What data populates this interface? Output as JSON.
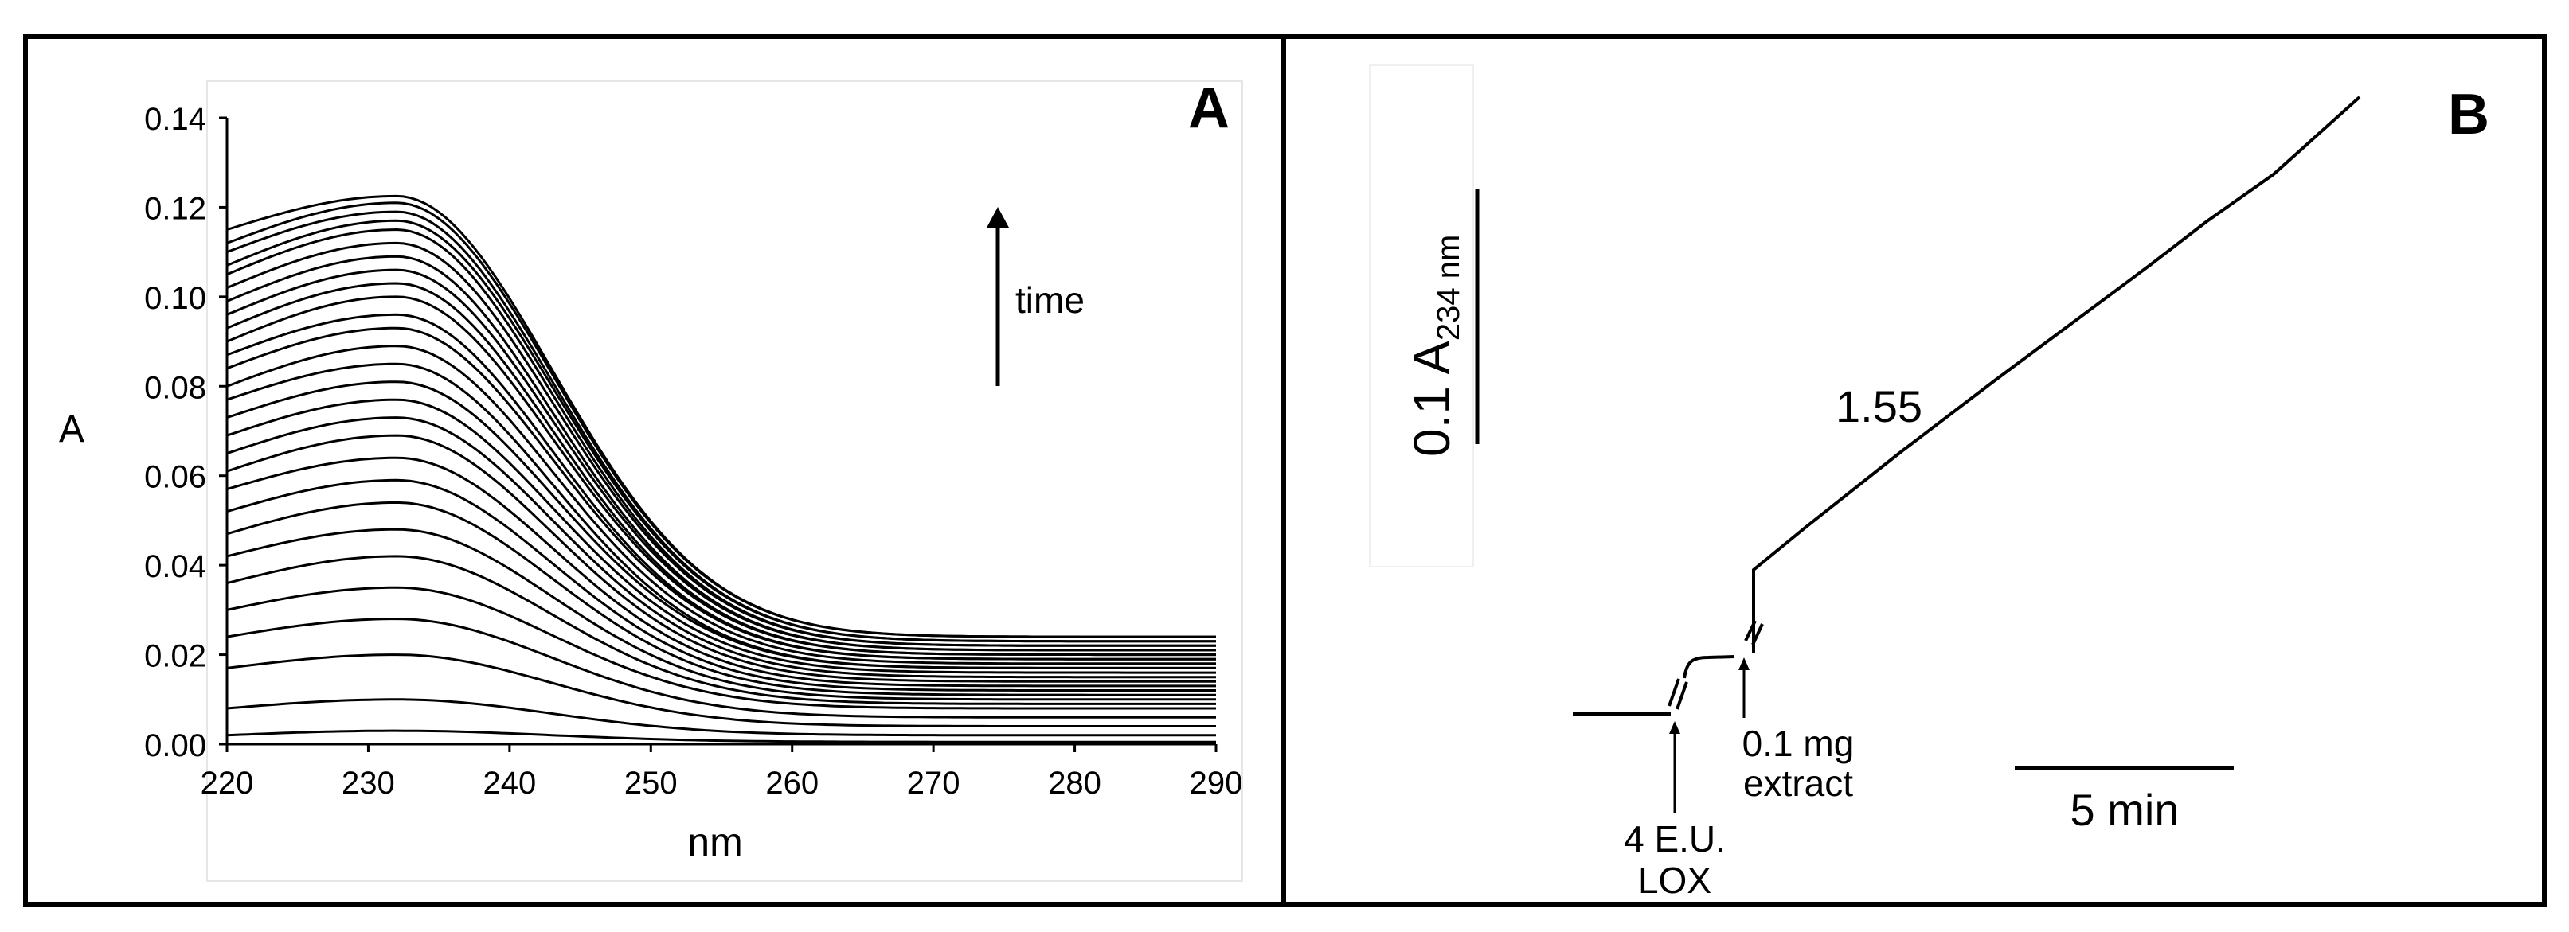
{
  "chart_data": [
    {
      "panel": "A",
      "type": "line",
      "xlabel": "nm",
      "ylabel": "A",
      "xlim": [
        220,
        290
      ],
      "ylim": [
        0,
        0.14
      ],
      "xticks": [
        "220",
        "230",
        "240",
        "250",
        "260",
        "270",
        "280",
        "290"
      ],
      "yticks": [
        "0.00",
        "0.02",
        "0.04",
        "0.06",
        "0.08",
        "0.10",
        "0.12",
        "0.14"
      ],
      "annotation": "time",
      "grid": false,
      "series": [
        {
          "peak": 0.003,
          "start": 0.002,
          "end": 0.0005
        },
        {
          "peak": 0.01,
          "start": 0.008,
          "end": 0.002
        },
        {
          "peak": 0.02,
          "start": 0.017,
          "end": 0.004
        },
        {
          "peak": 0.028,
          "start": 0.024,
          "end": 0.006
        },
        {
          "peak": 0.035,
          "start": 0.03,
          "end": 0.008
        },
        {
          "peak": 0.042,
          "start": 0.036,
          "end": 0.009
        },
        {
          "peak": 0.048,
          "start": 0.042,
          "end": 0.01
        },
        {
          "peak": 0.054,
          "start": 0.047,
          "end": 0.011
        },
        {
          "peak": 0.059,
          "start": 0.052,
          "end": 0.012
        },
        {
          "peak": 0.064,
          "start": 0.057,
          "end": 0.013
        },
        {
          "peak": 0.069,
          "start": 0.061,
          "end": 0.014
        },
        {
          "peak": 0.073,
          "start": 0.065,
          "end": 0.015
        },
        {
          "peak": 0.077,
          "start": 0.069,
          "end": 0.016
        },
        {
          "peak": 0.081,
          "start": 0.073,
          "end": 0.017
        },
        {
          "peak": 0.085,
          "start": 0.077,
          "end": 0.017
        },
        {
          "peak": 0.089,
          "start": 0.08,
          "end": 0.018
        },
        {
          "peak": 0.093,
          "start": 0.084,
          "end": 0.019
        },
        {
          "peak": 0.096,
          "start": 0.087,
          "end": 0.019
        },
        {
          "peak": 0.1,
          "start": 0.09,
          "end": 0.02
        },
        {
          "peak": 0.103,
          "start": 0.093,
          "end": 0.02
        },
        {
          "peak": 0.106,
          "start": 0.096,
          "end": 0.021
        },
        {
          "peak": 0.109,
          "start": 0.099,
          "end": 0.021
        },
        {
          "peak": 0.112,
          "start": 0.102,
          "end": 0.022
        },
        {
          "peak": 0.115,
          "start": 0.105,
          "end": 0.022
        },
        {
          "peak": 0.117,
          "start": 0.107,
          "end": 0.023
        },
        {
          "peak": 0.119,
          "start": 0.11,
          "end": 0.023
        },
        {
          "peak": 0.121,
          "start": 0.112,
          "end": 0.024
        },
        {
          "peak": 0.1225,
          "start": 0.115,
          "end": 0.024
        }
      ]
    },
    {
      "panel": "B",
      "type": "line",
      "scale_bar_y": "0.1 A",
      "scale_bar_y_sub": "234 nm",
      "scale_bar_x": "5 min",
      "rate_label": "1.55",
      "annotations": [
        {
          "id": "lox",
          "line1": "4 E.U.",
          "line2": "LOX"
        },
        {
          "id": "extract",
          "line1": "0.1 mg",
          "line2": "extract"
        }
      ]
    }
  ],
  "panel_labels": {
    "a": "A",
    "b": "B"
  }
}
